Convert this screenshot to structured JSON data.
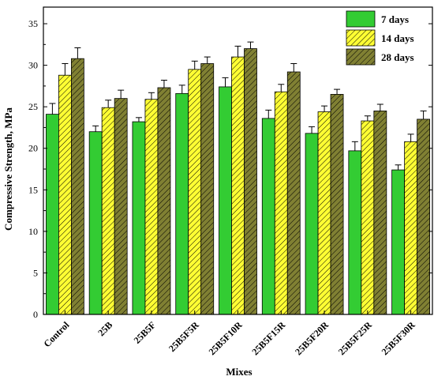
{
  "chart_data": {
    "type": "bar",
    "title": "",
    "xlabel": "Mixes",
    "ylabel": "Compressive Strength, MPa",
    "ylim": [
      0,
      37
    ],
    "yticks": [
      0,
      5,
      10,
      15,
      20,
      25,
      30,
      35
    ],
    "categories": [
      "Control",
      "25B",
      "25B5F",
      "25B5F5R",
      "25B5F10R",
      "25B5F15R",
      "25B5F20R",
      "25B5F25R",
      "25B5F30R"
    ],
    "series": [
      {
        "name": "7 days",
        "color": "#33cc33",
        "pattern": "none",
        "values": [
          24.1,
          22.0,
          23.2,
          26.6,
          27.4,
          23.6,
          21.8,
          19.7,
          17.4
        ],
        "errors": [
          1.3,
          0.7,
          0.5,
          1.0,
          1.1,
          1.0,
          0.8,
          1.1,
          0.6
        ]
      },
      {
        "name": "14 days",
        "color": "#ffff33",
        "pattern": "hatch",
        "values": [
          28.8,
          24.9,
          25.9,
          29.5,
          31.0,
          26.8,
          24.4,
          23.3,
          20.8
        ],
        "errors": [
          1.4,
          0.9,
          0.8,
          1.0,
          1.3,
          0.9,
          0.7,
          0.6,
          0.9
        ]
      },
      {
        "name": "28 days",
        "color": "#808033",
        "pattern": "hatch",
        "values": [
          30.8,
          26.0,
          27.3,
          30.2,
          32.0,
          29.2,
          26.5,
          24.5,
          23.5
        ],
        "errors": [
          1.3,
          1.0,
          0.9,
          0.8,
          0.8,
          1.0,
          0.6,
          0.8,
          1.0
        ]
      }
    ],
    "grid": false,
    "legend_position": "top-right"
  }
}
